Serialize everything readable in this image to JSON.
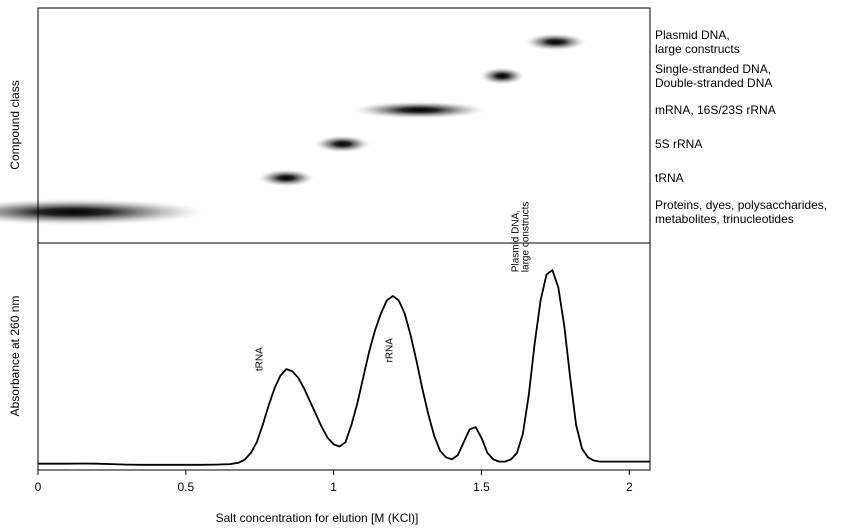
{
  "chart_data": [
    {
      "type": "heatmap",
      "ylabel": "Compound class",
      "xlim": [
        0,
        2.07
      ],
      "categories": [
        [
          "Proteins, dyes, polysaccharides,",
          "metabolites, trinucleotides"
        ],
        [
          "tRNA"
        ],
        [
          "5S rRNA"
        ],
        [
          "mRNA, 16S/23S rRNA"
        ],
        [
          "Single-stranded DNA,",
          "Double-stranded DNA"
        ],
        [
          "Plasmid DNA,",
          "large constructs"
        ]
      ],
      "bands": [
        {
          "center": 0.12,
          "halfwidth": 0.48
        },
        {
          "center": 0.84,
          "halfwidth": 0.1
        },
        {
          "center": 1.03,
          "halfwidth": 0.1
        },
        {
          "center": 1.29,
          "halfwidth": 0.24
        },
        {
          "center": 1.57,
          "halfwidth": 0.08
        },
        {
          "center": 1.75,
          "halfwidth": 0.11
        }
      ]
    },
    {
      "type": "line",
      "ylabel": "Absorbance at 260 nm",
      "xlabel": "Salt concentration for elution [M (KCl)]",
      "xlim": [
        0,
        2.07
      ],
      "ylim": [
        0,
        1
      ],
      "xticks": [
        0,
        0.5,
        1,
        1.5,
        2
      ],
      "xtick_labels": [
        "0",
        "0.5",
        "1",
        "1.5",
        "2"
      ],
      "series": [
        {
          "x": [
            0,
            0.05,
            0.1,
            0.15,
            0.2,
            0.25,
            0.3,
            0.35,
            0.4,
            0.45,
            0.5,
            0.55,
            0.6,
            0.65,
            0.68,
            0.7,
            0.72,
            0.74,
            0.76,
            0.78,
            0.8,
            0.82,
            0.84,
            0.86,
            0.88,
            0.9,
            0.92,
            0.94,
            0.96,
            0.98,
            1.0,
            1.02,
            1.04,
            1.06,
            1.08,
            1.1,
            1.12,
            1.14,
            1.16,
            1.18,
            1.2,
            1.22,
            1.24,
            1.26,
            1.28,
            1.3,
            1.32,
            1.34,
            1.36,
            1.38,
            1.4,
            1.42,
            1.44,
            1.46,
            1.48,
            1.5,
            1.52,
            1.54,
            1.56,
            1.58,
            1.6,
            1.62,
            1.64,
            1.66,
            1.68,
            1.7,
            1.72,
            1.74,
            1.76,
            1.78,
            1.8,
            1.82,
            1.84,
            1.86,
            1.88,
            1.9,
            1.92,
            1.94,
            1.96,
            1.98,
            2.0,
            2.02,
            2.04,
            2.07
          ],
          "y": [
            0.02,
            0.02,
            0.02,
            0.021,
            0.02,
            0.018,
            0.016,
            0.015,
            0.015,
            0.015,
            0.015,
            0.015,
            0.016,
            0.018,
            0.025,
            0.04,
            0.07,
            0.12,
            0.2,
            0.29,
            0.37,
            0.43,
            0.46,
            0.45,
            0.42,
            0.37,
            0.31,
            0.25,
            0.19,
            0.14,
            0.11,
            0.1,
            0.12,
            0.2,
            0.3,
            0.42,
            0.54,
            0.64,
            0.72,
            0.78,
            0.8,
            0.78,
            0.72,
            0.62,
            0.5,
            0.37,
            0.25,
            0.15,
            0.08,
            0.05,
            0.04,
            0.06,
            0.12,
            0.18,
            0.19,
            0.14,
            0.07,
            0.04,
            0.03,
            0.03,
            0.04,
            0.07,
            0.16,
            0.34,
            0.58,
            0.78,
            0.9,
            0.92,
            0.84,
            0.66,
            0.42,
            0.2,
            0.09,
            0.05,
            0.035,
            0.03,
            0.03,
            0.03,
            0.03,
            0.03,
            0.03,
            0.03,
            0.03,
            0.03
          ]
        }
      ],
      "annotations": [
        {
          "text": [
            "tRNA"
          ],
          "x": 0.84
        },
        {
          "text": [
            "rRNA"
          ],
          "x": 1.28
        },
        {
          "text": [
            "Plasmid DNA,",
            "large constructs"
          ],
          "x": 1.74
        }
      ]
    }
  ]
}
